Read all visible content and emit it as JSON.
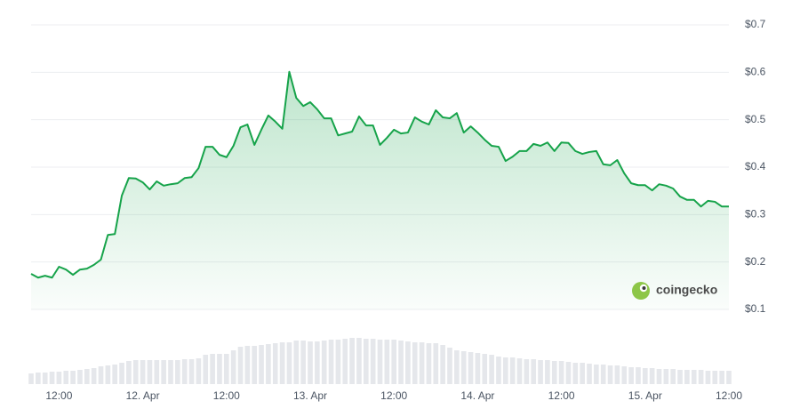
{
  "chart_data": {
    "type": "line",
    "categories": [
      null,
      null,
      null,
      null,
      "12:00",
      null,
      null,
      null,
      null,
      null,
      null,
      null,
      null,
      null,
      null,
      null,
      "12. Apr",
      null,
      null,
      null,
      null,
      null,
      null,
      null,
      null,
      null,
      null,
      null,
      "12:00",
      null,
      null,
      null,
      null,
      null,
      null,
      null,
      null,
      null,
      null,
      null,
      "13. Apr",
      null,
      null,
      null,
      null,
      null,
      null,
      null,
      null,
      null,
      null,
      null,
      "12:00",
      null,
      null,
      null,
      null,
      null,
      null,
      null,
      null,
      null,
      null,
      null,
      "14. Apr",
      null,
      null,
      null,
      null,
      null,
      null,
      null,
      null,
      null,
      null,
      null,
      "12:00",
      null,
      null,
      null,
      null,
      null,
      null,
      null,
      null,
      null,
      null,
      null,
      "15. Apr",
      null,
      null,
      null,
      null,
      null,
      null,
      null,
      null,
      null,
      null,
      null,
      "12:00"
    ],
    "values": [
      0.175,
      0.167,
      0.171,
      0.167,
      0.19,
      0.184,
      0.173,
      0.184,
      0.186,
      0.194,
      0.205,
      0.257,
      0.259,
      0.34,
      0.377,
      0.376,
      0.368,
      0.353,
      0.37,
      0.361,
      0.364,
      0.366,
      0.377,
      0.379,
      0.398,
      0.443,
      0.443,
      0.426,
      0.421,
      0.445,
      0.484,
      0.49,
      0.447,
      0.479,
      0.509,
      0.496,
      0.481,
      0.601,
      0.546,
      0.529,
      0.537,
      0.522,
      0.503,
      0.503,
      0.467,
      0.471,
      0.475,
      0.507,
      0.488,
      0.488,
      0.447,
      0.462,
      0.479,
      0.471,
      0.473,
      0.505,
      0.496,
      0.49,
      0.52,
      0.505,
      0.503,
      0.514,
      0.473,
      0.486,
      0.473,
      0.458,
      0.445,
      0.443,
      0.413,
      0.422,
      0.434,
      0.434,
      0.449,
      0.445,
      0.452,
      0.434,
      0.452,
      0.451,
      0.434,
      0.428,
      0.432,
      0.434,
      0.406,
      0.404,
      0.415,
      0.387,
      0.366,
      0.362,
      0.362,
      0.351,
      0.364,
      0.361,
      0.355,
      0.338,
      0.331,
      0.331,
      0.317,
      0.329,
      0.327,
      0.317,
      0.317
    ],
    "color": "#16a34a",
    "volume": {
      "color": "#e5e7eb",
      "values": [
        12,
        13,
        13,
        14,
        14,
        15,
        15,
        16,
        17,
        18,
        20,
        21,
        22,
        24,
        26,
        27,
        27,
        27,
        27,
        27,
        27,
        27,
        28,
        28,
        29,
        33,
        34,
        34,
        34,
        38,
        42,
        43,
        43,
        44,
        45,
        46,
        47,
        47,
        49,
        49,
        48,
        48,
        49,
        50,
        50,
        51,
        52,
        52,
        51,
        51,
        50,
        50,
        50,
        49,
        48,
        47,
        47,
        46,
        46,
        44,
        41,
        38,
        37,
        36,
        35,
        34,
        33,
        31,
        30,
        30,
        29,
        28,
        28,
        27,
        27,
        26,
        26,
        25,
        24,
        24,
        23,
        22,
        22,
        21,
        21,
        20,
        19,
        19,
        18,
        18,
        17,
        17,
        17,
        16,
        16,
        16,
        16,
        15,
        15,
        15,
        15
      ]
    },
    "ylim": [
      0.1,
      0.7
    ],
    "yticks": [
      {
        "value": 0.1,
        "label": "$0.1"
      },
      {
        "value": 0.2,
        "label": "$0.2"
      },
      {
        "value": 0.3,
        "label": "$0.3"
      },
      {
        "value": 0.4,
        "label": "$0.4"
      },
      {
        "value": 0.5,
        "label": "$0.5"
      },
      {
        "value": 0.6,
        "label": "$0.6"
      },
      {
        "value": 0.7,
        "label": "$0.7"
      }
    ],
    "grid": true,
    "watermark": "coingecko"
  }
}
